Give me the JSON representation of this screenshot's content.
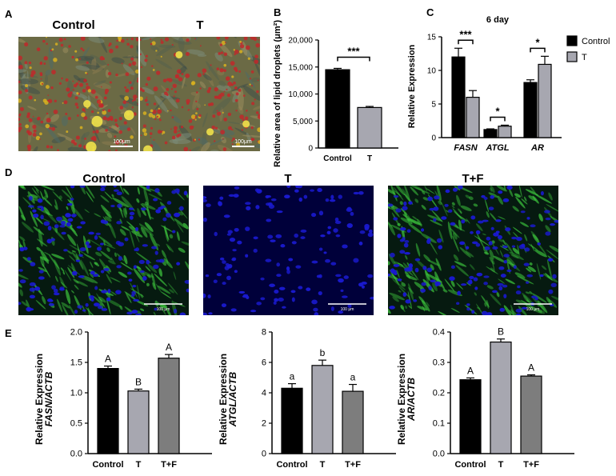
{
  "panels": {
    "A": {
      "letter": "A",
      "labels": [
        "Control",
        "T"
      ],
      "scalebar": "100μm"
    },
    "D": {
      "letter": "D",
      "labels": [
        "Control",
        "T",
        "T+F"
      ],
      "scalebar": "100 μm"
    }
  },
  "colors": {
    "control": "#000000",
    "treated": "#a7a7b0",
    "tf": "#7d7d7d",
    "lipid_red": "#c0282a",
    "nuclei_blue": "#1a1ad0",
    "lipid_green": "#3cc23c"
  },
  "chart_data": [
    {
      "id": "B",
      "letter": "B",
      "type": "bar",
      "categories": [
        "Control",
        "T"
      ],
      "values": [
        14500,
        7500
      ],
      "errors": [
        250,
        200
      ],
      "colors": [
        "#000000",
        "#a7a7b0"
      ],
      "ylabel": "Relative area of lipid droplets (μm²)",
      "ylim": [
        0,
        20000
      ],
      "yticks": [
        "0",
        "5,000",
        "10,000",
        "15,000",
        "20,000"
      ],
      "yticks_values": [
        0,
        5000,
        10000,
        15000,
        20000
      ],
      "significance": [
        {
          "pair": [
            0,
            1
          ],
          "label": "***"
        }
      ]
    },
    {
      "id": "C",
      "letter": "C",
      "type": "bar",
      "title": "6 day",
      "categories": [
        "FASN",
        "ATGL",
        "AR"
      ],
      "series": [
        {
          "name": "Control",
          "values": [
            12.0,
            1.2,
            8.2
          ],
          "errors": [
            1.3,
            0.1,
            0.4
          ],
          "color": "#000000"
        },
        {
          "name": "T",
          "values": [
            6.0,
            1.7,
            10.9
          ],
          "errors": [
            1.0,
            0.15,
            1.2
          ],
          "color": "#a7a7b0"
        }
      ],
      "ylabel": "Relative Expression",
      "ylim": [
        0,
        15
      ],
      "yticks": [
        "0",
        "5",
        "10",
        "15"
      ],
      "yticks_values": [
        0,
        5,
        10,
        15
      ],
      "significance": [
        {
          "category": 0,
          "label": "***"
        },
        {
          "category": 1,
          "label": "*"
        },
        {
          "category": 2,
          "label": "*"
        }
      ],
      "legend_position": "top-right"
    },
    {
      "id": "E1",
      "letter": "E",
      "type": "bar",
      "categories": [
        "Control",
        "T",
        "T+F"
      ],
      "values": [
        1.4,
        1.03,
        1.57
      ],
      "errors": [
        0.04,
        0.03,
        0.06
      ],
      "colors": [
        "#000000",
        "#a7a7b0",
        "#7d7d7d"
      ],
      "letters": [
        "A",
        "B",
        "A"
      ],
      "ylabel_top": "Relative Expression",
      "ylabel_bottom": "FASN/ACTB",
      "ylim": [
        0,
        2.0
      ],
      "yticks": [
        "0.0",
        "0.5",
        "1.0",
        "1.5",
        "2.0"
      ],
      "yticks_values": [
        0,
        0.5,
        1.0,
        1.5,
        2.0
      ]
    },
    {
      "id": "E2",
      "type": "bar",
      "categories": [
        "Control",
        "T",
        "T+F"
      ],
      "values": [
        4.3,
        5.8,
        4.1
      ],
      "errors": [
        0.3,
        0.35,
        0.45
      ],
      "colors": [
        "#000000",
        "#a7a7b0",
        "#7d7d7d"
      ],
      "letters": [
        "a",
        "b",
        "a"
      ],
      "ylabel_top": "Relative Expression",
      "ylabel_bottom": "ATGL/ACTB",
      "ylim": [
        0,
        8
      ],
      "yticks": [
        "0",
        "2",
        "4",
        "6",
        "8"
      ],
      "yticks_values": [
        0,
        2,
        4,
        6,
        8
      ]
    },
    {
      "id": "E3",
      "type": "bar",
      "categories": [
        "Control",
        "T",
        "T+F"
      ],
      "values": [
        0.243,
        0.367,
        0.255
      ],
      "errors": [
        0.006,
        0.01,
        0.004
      ],
      "colors": [
        "#000000",
        "#a7a7b0",
        "#7d7d7d"
      ],
      "letters": [
        "A",
        "B",
        "A"
      ],
      "ylabel_top": "Relative Expression",
      "ylabel_bottom": "AR/ACTB",
      "ylim": [
        0,
        0.4
      ],
      "yticks": [
        "0.0",
        "0.1",
        "0.2",
        "0.3",
        "0.4"
      ],
      "yticks_values": [
        0,
        0.1,
        0.2,
        0.3,
        0.4
      ]
    }
  ]
}
